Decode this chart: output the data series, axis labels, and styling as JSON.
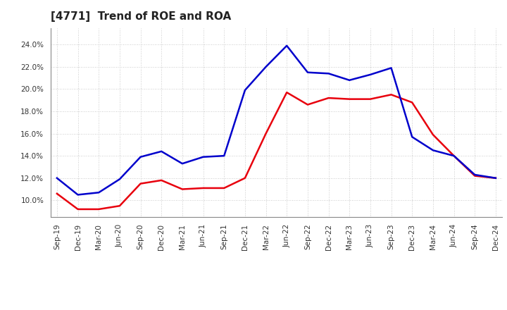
{
  "title": "[4771]  Trend of ROE and ROA",
  "x_labels": [
    "Sep-19",
    "Dec-19",
    "Mar-20",
    "Jun-20",
    "Sep-20",
    "Dec-20",
    "Mar-21",
    "Jun-21",
    "Sep-21",
    "Dec-21",
    "Mar-22",
    "Jun-22",
    "Sep-22",
    "Dec-22",
    "Mar-23",
    "Jun-23",
    "Sep-23",
    "Dec-23",
    "Mar-24",
    "Jun-24",
    "Sep-24",
    "Dec-24"
  ],
  "roe": [
    10.6,
    9.2,
    9.2,
    9.5,
    11.5,
    11.8,
    11.0,
    11.1,
    11.1,
    12.0,
    16.0,
    19.7,
    18.6,
    19.2,
    19.1,
    19.1,
    19.5,
    18.8,
    15.9,
    14.0,
    12.2,
    12.0
  ],
  "roa": [
    12.0,
    10.5,
    10.7,
    11.9,
    13.9,
    14.4,
    13.3,
    13.9,
    14.0,
    19.9,
    22.0,
    23.9,
    21.5,
    21.4,
    20.8,
    21.3,
    21.9,
    15.7,
    14.5,
    14.0,
    12.3,
    12.0
  ],
  "roe_color": "#e8000d",
  "roa_color": "#0000cc",
  "ylim_min": 8.5,
  "ylim_max": 25.5,
  "yticks": [
    10.0,
    12.0,
    14.0,
    16.0,
    18.0,
    20.0,
    22.0,
    24.0
  ],
  "grid_color": "#bbbbbb",
  "background_color": "#ffffff",
  "title_fontsize": 11,
  "axis_fontsize": 7.5,
  "legend_fontsize": 9,
  "line_width": 1.8
}
